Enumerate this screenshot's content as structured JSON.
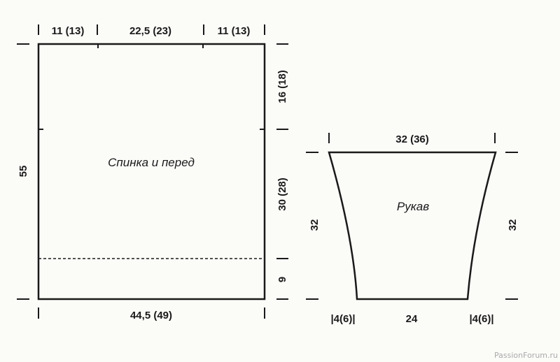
{
  "body_piece": {
    "label": "Спинка и перед",
    "top_dims": [
      "11 (13)",
      "22,5 (23)",
      "11 (13)"
    ],
    "height": "55",
    "right_dims": [
      "16 (18)",
      "30 (28)",
      "9"
    ],
    "bottom_width": "44,5 (49)"
  },
  "sleeve": {
    "label": "Рукав",
    "top_width": "32 (36)",
    "left_height": "32",
    "right_height": "32",
    "bottom_dims": [
      "|4(6)|",
      "24",
      "|4(6)|"
    ]
  },
  "watermark": "PassionForum.ru"
}
